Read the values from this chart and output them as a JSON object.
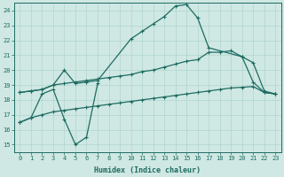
{
  "xlabel": "Humidex (Indice chaleur)",
  "xlim": [
    -0.5,
    23.5
  ],
  "ylim": [
    14.5,
    24.5
  ],
  "xticks": [
    0,
    1,
    2,
    3,
    4,
    5,
    6,
    7,
    8,
    9,
    10,
    11,
    12,
    13,
    14,
    15,
    16,
    17,
    18,
    19,
    20,
    21,
    22,
    23
  ],
  "yticks": [
    15,
    16,
    17,
    18,
    19,
    20,
    21,
    22,
    23,
    24
  ],
  "background_color": "#cfe8e3",
  "line_color": "#1e6b62",
  "grid_color": "#b0d4ce",
  "line1_x": [
    0,
    1,
    2,
    3,
    4,
    5,
    6,
    7
  ],
  "line1_y": [
    16.5,
    16.8,
    18.4,
    18.7,
    16.7,
    15.0,
    15.5,
    19.1
  ],
  "line2_x": [
    0,
    1,
    2,
    3,
    4,
    5,
    6,
    7,
    10,
    11,
    12,
    13,
    14,
    15,
    16,
    17,
    20,
    21,
    22,
    23
  ],
  "line2_y": [
    18.5,
    18.6,
    18.7,
    19.0,
    20.0,
    19.1,
    19.2,
    19.3,
    22.1,
    22.6,
    23.1,
    23.6,
    24.3,
    24.4,
    23.5,
    21.5,
    20.9,
    19.2,
    18.5,
    18.4
  ],
  "line3_x": [
    0,
    1,
    2,
    3,
    4,
    5,
    6,
    7,
    8,
    9,
    10,
    11,
    12,
    13,
    14,
    15,
    16,
    17,
    18,
    19,
    20,
    21,
    22,
    23
  ],
  "line3_y": [
    18.5,
    18.6,
    18.7,
    19.0,
    19.1,
    19.2,
    19.3,
    19.4,
    19.5,
    19.6,
    19.7,
    19.9,
    20.0,
    20.2,
    20.4,
    20.6,
    20.7,
    21.2,
    21.2,
    21.3,
    20.9,
    20.5,
    18.6,
    18.4
  ],
  "line4_x": [
    0,
    1,
    2,
    3,
    4,
    5,
    6,
    7,
    8,
    9,
    10,
    11,
    12,
    13,
    14,
    15,
    16,
    17,
    18,
    19,
    20,
    21,
    22,
    23
  ],
  "line4_y": [
    16.5,
    16.8,
    17.0,
    17.2,
    17.3,
    17.4,
    17.5,
    17.6,
    17.7,
    17.8,
    17.9,
    18.0,
    18.1,
    18.2,
    18.3,
    18.4,
    18.5,
    18.6,
    18.7,
    18.8,
    18.85,
    18.9,
    18.5,
    18.4
  ]
}
